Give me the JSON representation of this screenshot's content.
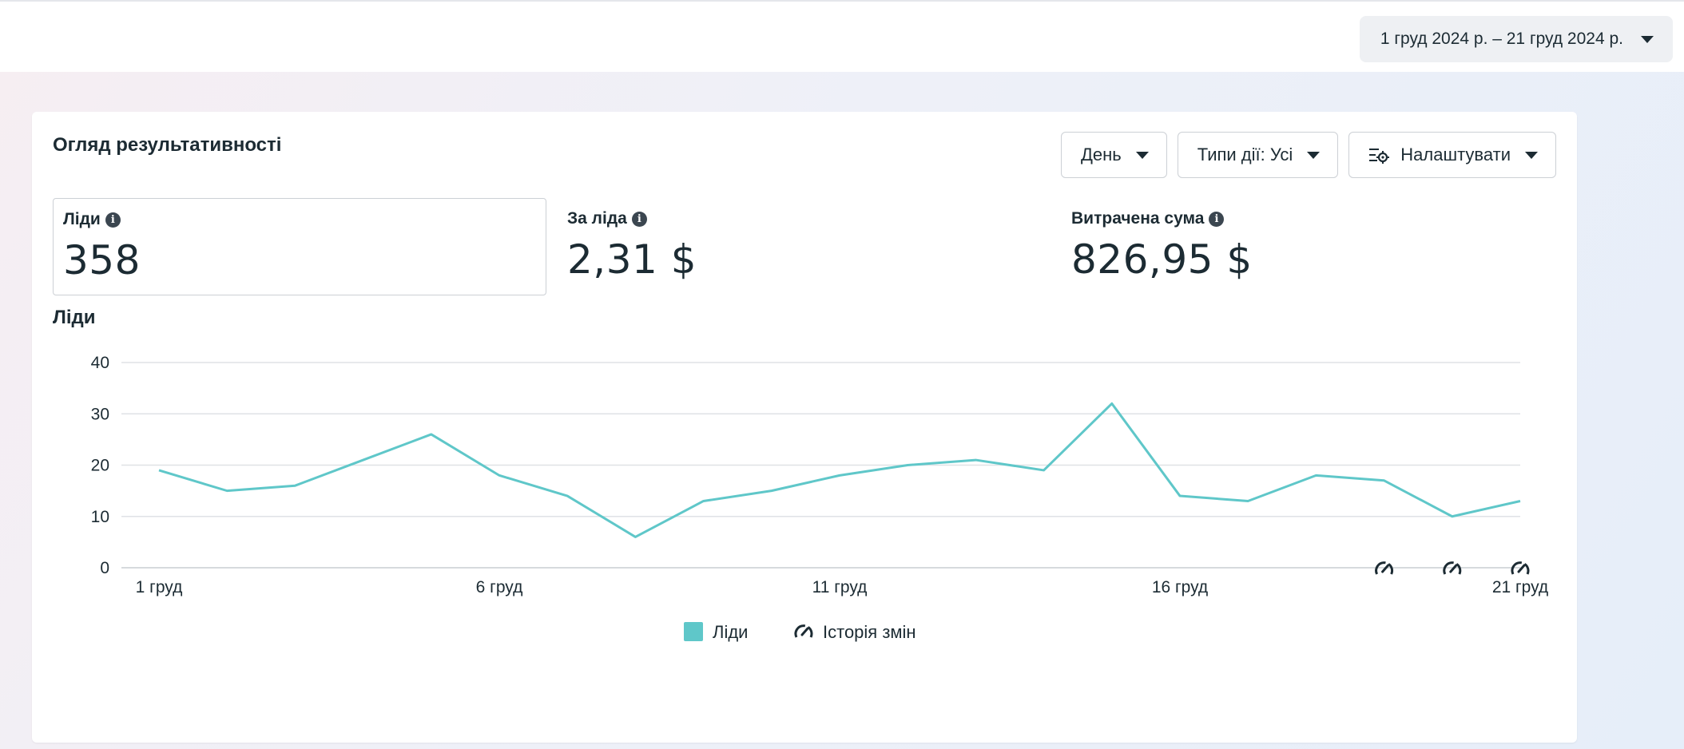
{
  "header": {
    "date_range": "1 груд 2024 р. – 21 груд 2024 р."
  },
  "card": {
    "title": "Огляд результативності",
    "controls": {
      "day_label": "День",
      "action_types_label": "Типи дії: Усі",
      "customize_label": "Налаштувати"
    },
    "metrics": [
      {
        "label": "Ліди",
        "value": "358"
      },
      {
        "label": "За ліда",
        "value": "2,31 $"
      },
      {
        "label": "Витрачена сума",
        "value": "826,95 $"
      }
    ],
    "chart_title": "Ліди"
  },
  "colors": {
    "series": "#5fc7c9",
    "grid": "#dfe2e6",
    "text": "#1c2b33"
  },
  "icons": {
    "date_caret": "chevron-down-icon",
    "info": "info-icon",
    "settings": "settings-sliders-icon",
    "history": "history-gauge-icon"
  },
  "chart_data": {
    "type": "line",
    "x": [
      "1 груд",
      "2 груд",
      "3 груд",
      "4 груд",
      "5 груд",
      "6 груд",
      "7 груд",
      "8 груд",
      "9 груд",
      "10 груд",
      "11 груд",
      "12 груд",
      "13 груд",
      "14 груд",
      "15 груд",
      "16 груд",
      "17 груд",
      "18 груд",
      "19 груд",
      "20 груд",
      "21 груд"
    ],
    "x_tick_labels": [
      "1 груд",
      "6 груд",
      "11 груд",
      "16 груд",
      "21 груд"
    ],
    "y_ticks": [
      "0",
      "10",
      "20",
      "30",
      "40"
    ],
    "ylim": [
      0,
      40
    ],
    "grid": true,
    "series": [
      {
        "name": "Ліди",
        "values": [
          19,
          15,
          16,
          21,
          26,
          18,
          14,
          6,
          13,
          15,
          18,
          20,
          21,
          19,
          32,
          14,
          13,
          18,
          17,
          10,
          13
        ]
      }
    ],
    "change_history_dates": [
      "19 груд",
      "20 груд",
      "21 груд"
    ],
    "legend": [
      {
        "label": "Ліди",
        "kind": "swatch"
      },
      {
        "label": "Історія змін",
        "kind": "history-icon"
      }
    ],
    "legend_position": "bottom-center"
  }
}
